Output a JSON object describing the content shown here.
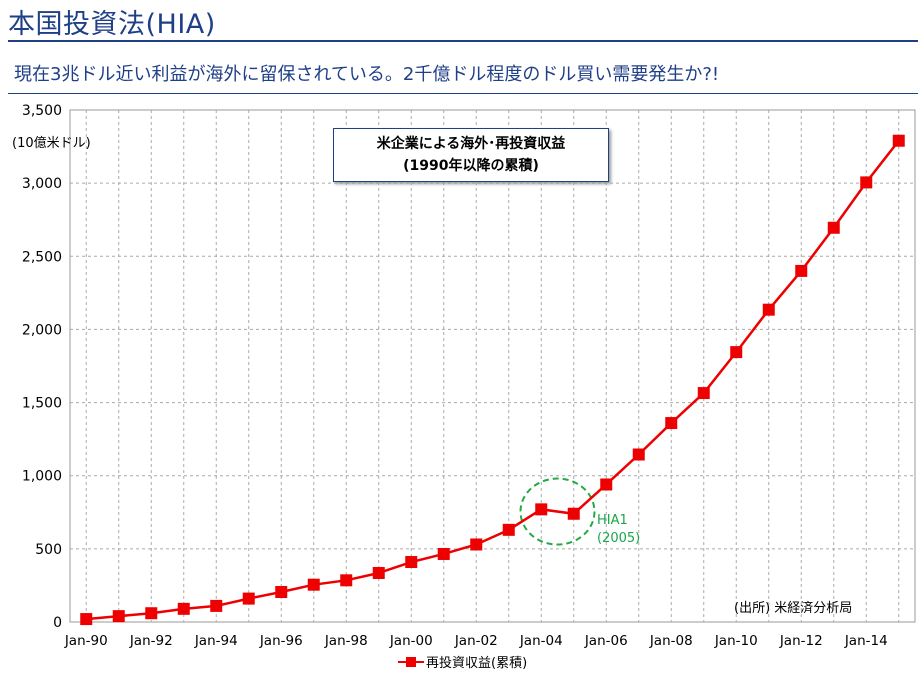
{
  "header": {
    "title": "本国投資法(HIA)",
    "subtitle": "現在3兆ドル近い利益が海外に留保されている。2千億ドル程度のドル買い需要発生か?!"
  },
  "chart_data": {
    "type": "line",
    "title_line1": "米企業による海外･再投資収益",
    "title_line2": "(1990年以降の累積)",
    "unit_label": "(10億米ドル)",
    "source": "(出所)  米経済分析局",
    "annotation": {
      "label_line1": "HIA1",
      "label_line2": "(2005)",
      "x": 2005
    },
    "x_tick_labels": [
      "Jan-90",
      "Jan-92",
      "Jan-94",
      "Jan-96",
      "Jan-98",
      "Jan-00",
      "Jan-02",
      "Jan-04",
      "Jan-06",
      "Jan-08",
      "Jan-10",
      "Jan-12",
      "Jan-14"
    ],
    "y_tick_labels": [
      "0",
      "500",
      "1,000",
      "1,500",
      "2,000",
      "2,500",
      "3,000",
      "3,500"
    ],
    "ylim": [
      0,
      3500
    ],
    "xlim": [
      1989.5,
      2015.5
    ],
    "grid": true,
    "legend_position": "bottom",
    "series": [
      {
        "name": "再投資収益(累積)",
        "color": "#ee0000",
        "x": [
          1990,
          1991,
          1992,
          1993,
          1994,
          1995,
          1996,
          1997,
          1998,
          1999,
          2000,
          2001,
          2002,
          2003,
          2004,
          2005,
          2006,
          2007,
          2008,
          2009,
          2010,
          2011,
          2012,
          2013,
          2014,
          2015
        ],
        "values": [
          20,
          40,
          60,
          90,
          110,
          160,
          205,
          255,
          285,
          335,
          410,
          465,
          530,
          630,
          770,
          740,
          940,
          1145,
          1360,
          1565,
          1845,
          2135,
          2400,
          2695,
          3005,
          3290
        ]
      }
    ]
  }
}
